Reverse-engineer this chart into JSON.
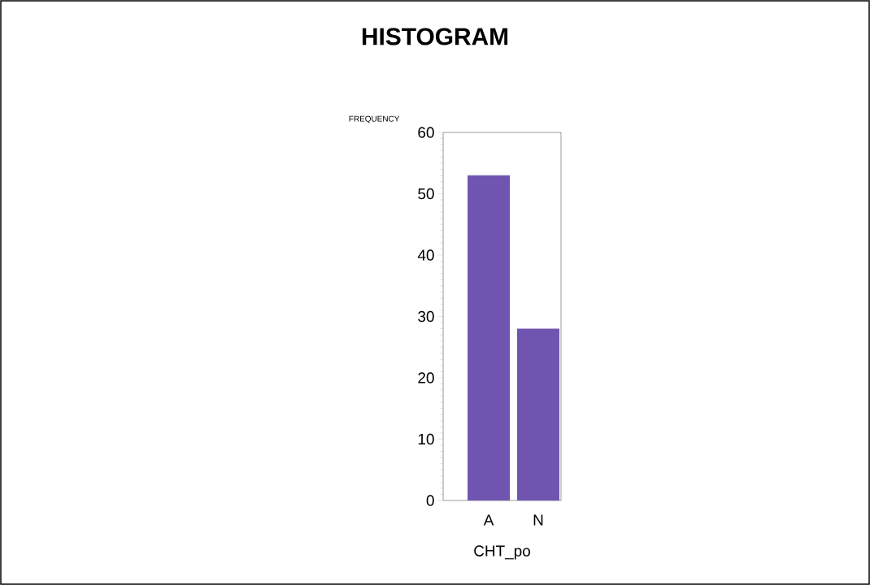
{
  "chart_data": {
    "type": "bar",
    "title": "HISTOGRAM",
    "xlabel": "CHT_po",
    "ylabel": "FREQUENCY",
    "categories": [
      "A",
      "N"
    ],
    "values": [
      53,
      28
    ],
    "color": "#6f55b0",
    "ylim": [
      0,
      60
    ],
    "yticks": [
      0,
      10,
      20,
      30,
      40,
      50,
      60
    ],
    "grid": false
  }
}
